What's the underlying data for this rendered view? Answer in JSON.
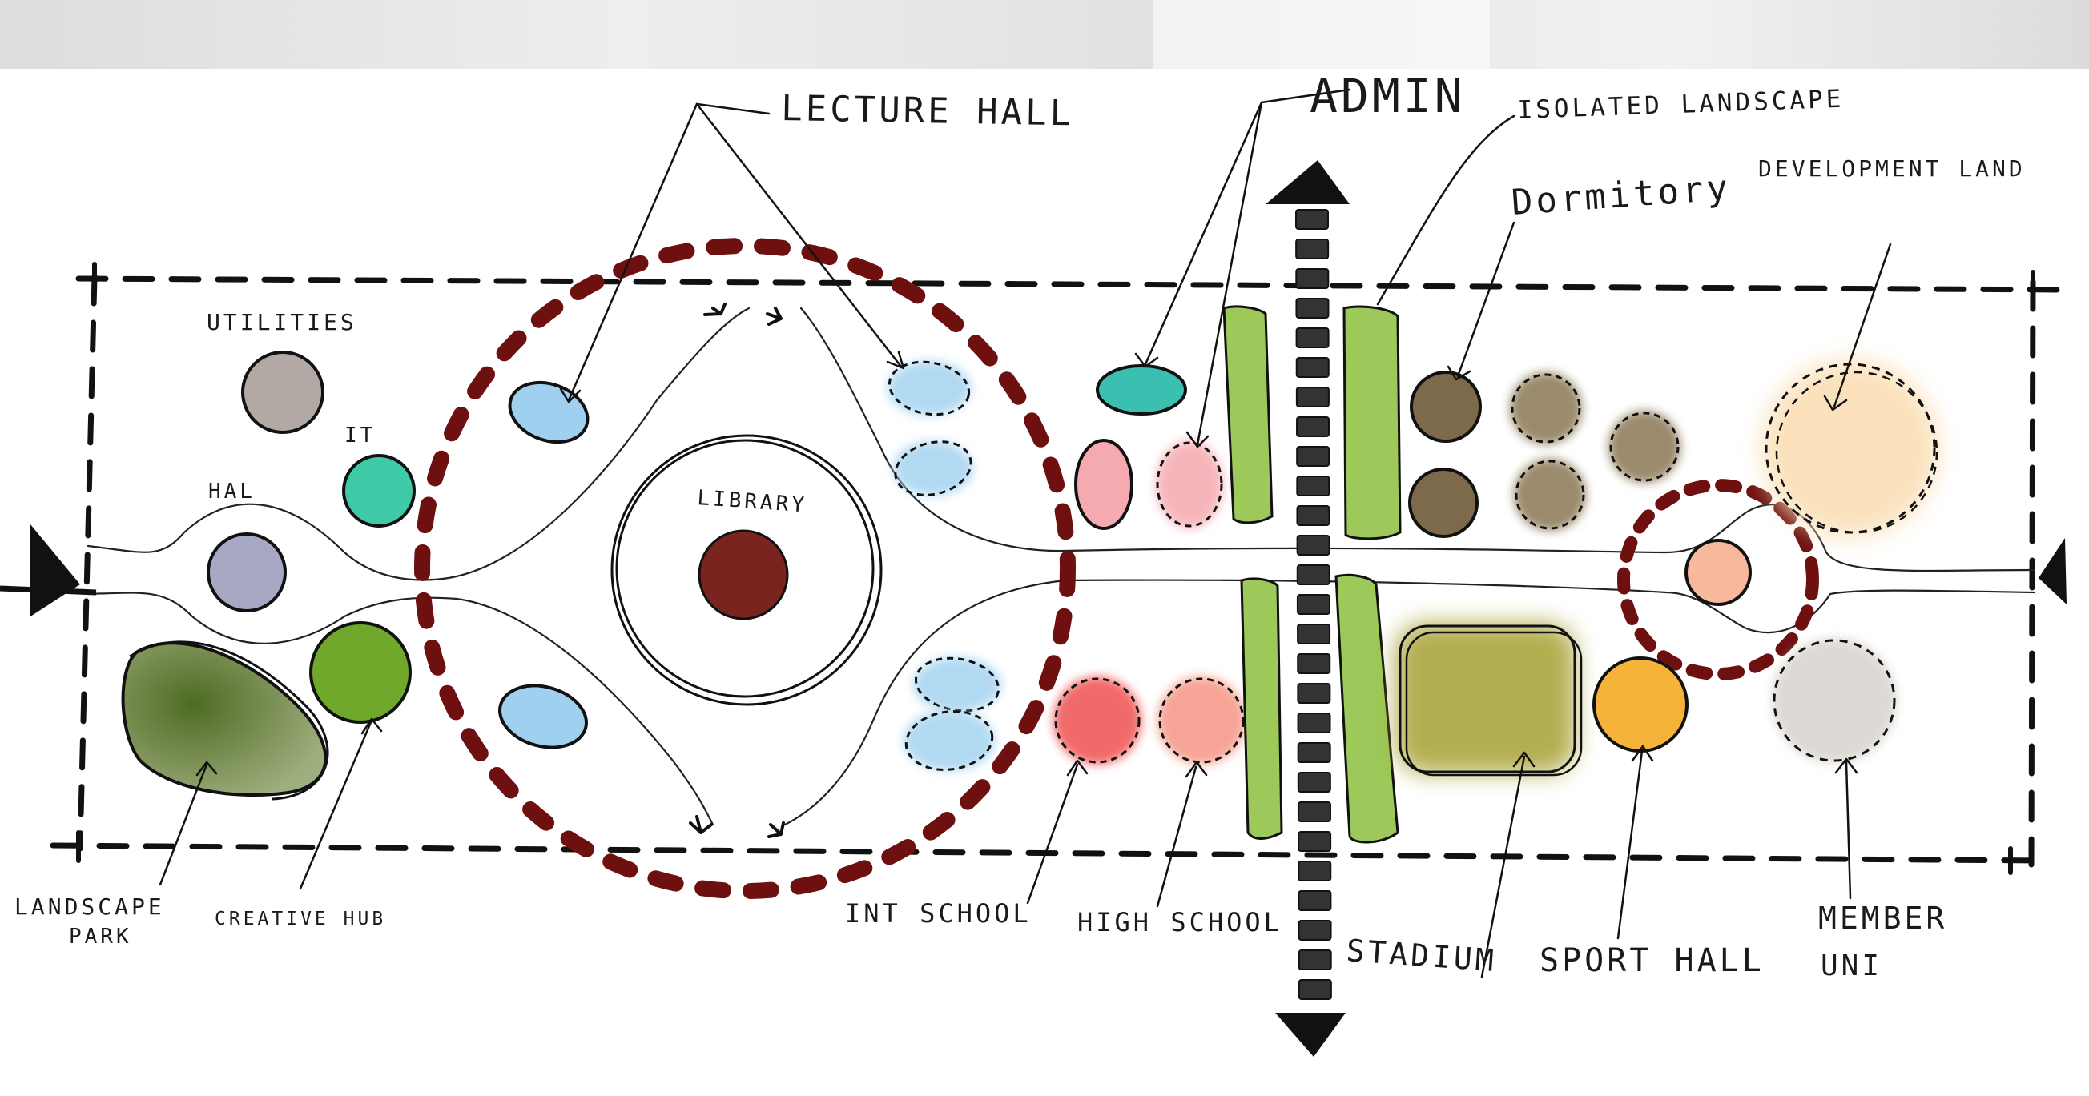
{
  "labels": {
    "lecture_hall": "LECTURE HALL",
    "admin": "ADMIN",
    "isolated_landscape": "ISOLATED LANDSCAPE",
    "development_land": "DEVELOPMENT LAND",
    "dormitory": "Dormitory",
    "utilities": "UTILITIES",
    "it": "IT",
    "hal": "HAL",
    "library": "LIBRARY",
    "landscape_park_1": "LANDSCAPE",
    "landscape_park_2": "PARK",
    "creative_hub": "CREATIVE HUB",
    "int_school": "INT SCHOOL",
    "high_school": "HIGH SCHOOL",
    "stadium": "STADIUM",
    "sport_hall": "SPORT HALL",
    "member_uni_1": "MEMBER",
    "member_uni_2": "UNI"
  },
  "colors": {
    "paper": "#ffffff",
    "aerial_strip": "#e4e4e4",
    "ink": "#111111",
    "focus_ring": "#6e1010",
    "axis": "#333333",
    "lecture_hall": "#9fd0ef",
    "admin": "#3bbfb0",
    "utilities": "#b3a9a4",
    "it": "#3ec9a7",
    "hal": "#a7a8c4",
    "library": "#7a2420",
    "landscape_park": "#5d7a2c",
    "creative_hub": "#6fa82a",
    "int_school": "#f05a5a",
    "high_school": "#f59b8a",
    "pink_block": "#f5a9b0",
    "green_strip": "#9cc95a",
    "dormitory": "#7d6a4a",
    "stadium": "#a6a033",
    "sport_hall": "#f6b33a",
    "member_uni": "#dcd8d2",
    "development_land": "#fbe0b8",
    "hub_node": "#f7b89e"
  },
  "icons": [
    "arrow-up-icon",
    "arrow-down-icon",
    "arrow-left-icon",
    "arrow-right-icon"
  ]
}
